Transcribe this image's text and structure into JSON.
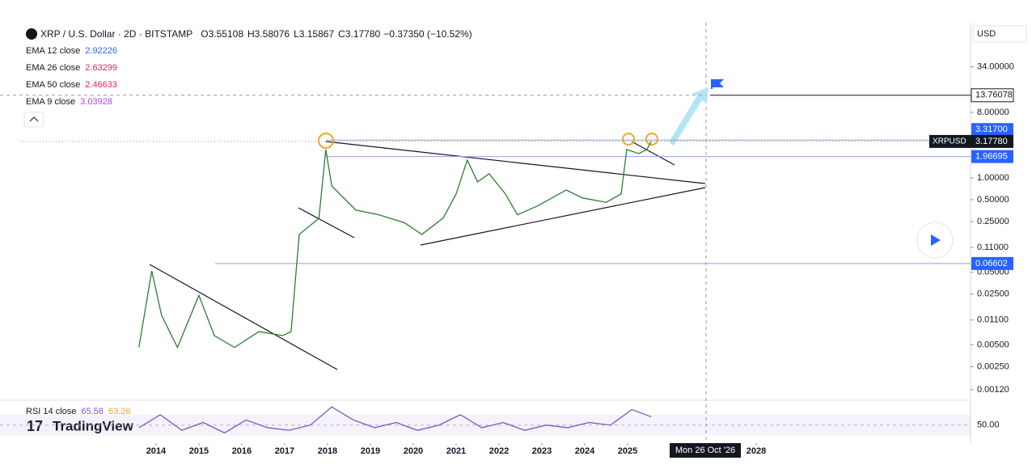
{
  "header": {
    "symbol": "XRP / U.S. Dollar · 2D · BITSTAMP",
    "ohlc": [
      {
        "label": "O",
        "value": "3.55108"
      },
      {
        "label": "H",
        "value": "3.58076"
      },
      {
        "label": "L",
        "value": "3.15867"
      },
      {
        "label": "C",
        "value": "3.17780"
      }
    ],
    "change": "−0.37350 (−10.52%)"
  },
  "indicators": [
    {
      "name": "EMA 12 close",
      "value": "2.92226",
      "color": "#2962ff"
    },
    {
      "name": "EMA 26 close",
      "value": "2.63299",
      "color": "#e91e63"
    },
    {
      "name": "EMA 50 close",
      "value": "2.46633",
      "color": "#e91e63"
    },
    {
      "name": "EMA 9 close",
      "value": "3.03928",
      "color": "#b93cf6"
    }
  ],
  "currency": "USD",
  "brand": "TradingView",
  "crosshair_label": "Mon 26 Oct '26",
  "chart_data": [
    {
      "type": "line",
      "log_scale": true,
      "color": "#2e7d32",
      "x": [
        2013.6,
        2013.9,
        2014.13,
        2014.5,
        2015.0,
        2015.36,
        2015.83,
        2016.4,
        2016.96,
        2017.15,
        2017.34,
        2017.8,
        2017.96,
        2018.1,
        2018.66,
        2019.2,
        2019.8,
        2020.2,
        2020.7,
        2021.0,
        2021.26,
        2021.5,
        2021.77,
        2022.15,
        2022.43,
        2022.9,
        2023.57,
        2023.94,
        2024.5,
        2024.85,
        2024.98,
        2025.26,
        2025.45,
        2025.55
      ],
      "values": [
        0.0046,
        0.052,
        0.0127,
        0.0046,
        0.024,
        0.0067,
        0.0046,
        0.0076,
        0.0067,
        0.0076,
        0.166,
        0.277,
        2.46,
        0.77,
        0.36,
        0.31,
        0.24,
        0.166,
        0.28,
        0.6,
        1.76,
        0.88,
        1.14,
        0.6,
        0.31,
        0.41,
        0.68,
        0.53,
        0.46,
        0.6,
        2.46,
        2.16,
        2.46,
        3.1778
      ],
      "xlim": [
        2010.36,
        2033.0
      ],
      "xticks": [
        2014,
        2015,
        2016,
        2017,
        2018,
        2019,
        2020,
        2021,
        2022,
        2023,
        2024,
        2025,
        2028
      ],
      "ylim": [
        0.00086,
        131
      ],
      "yticks": [
        {
          "value": 34,
          "label": "34.00000"
        },
        {
          "value": 8,
          "label": "8.00000"
        },
        {
          "value": 1,
          "label": "1.00000"
        },
        {
          "value": 0.5,
          "label": "0.50000"
        },
        {
          "value": 0.25,
          "label": "0.25000"
        },
        {
          "value": 0.11,
          "label": "0.11000"
        },
        {
          "value": 0.05,
          "label": "0.05000"
        },
        {
          "value": 0.025,
          "label": "0.02500"
        },
        {
          "value": 0.011,
          "label": "0.01100"
        },
        {
          "value": 0.005,
          "label": "0.00500"
        },
        {
          "value": 0.0025,
          "label": "0.00250"
        },
        {
          "value": 0.0012,
          "label": "0.00120"
        }
      ],
      "levels": [
        {
          "value": 13.76078,
          "label": "13.76078"
        },
        {
          "value": 3.317,
          "label": "3.31700"
        },
        {
          "value": 1.96695,
          "label": "1.96695"
        },
        {
          "value": 0.06602,
          "label": "0.06602"
        }
      ],
      "last_price": {
        "name": "XRPUSD",
        "value": 3.1778,
        "label": "3.17780"
      }
    },
    {
      "type": "line",
      "name": "RSI 14 close",
      "legend_values": [
        "65.58",
        "63.26"
      ],
      "color": "#7e57c2",
      "x": [
        2013.6,
        2014.1,
        2014.6,
        2015.1,
        2015.6,
        2016.1,
        2016.6,
        2017.1,
        2017.6,
        2018.1,
        2018.6,
        2019.1,
        2019.6,
        2020.1,
        2020.6,
        2021.1,
        2021.6,
        2022.1,
        2022.6,
        2023.1,
        2023.6,
        2024.1,
        2024.6,
        2025.1,
        2025.55
      ],
      "values": [
        45,
        70,
        40,
        55,
        35,
        60,
        45,
        40,
        50,
        85,
        60,
        45,
        55,
        40,
        50,
        70,
        45,
        55,
        40,
        50,
        45,
        55,
        50,
        80,
        66
      ],
      "xlim": [
        2010.36,
        2033.0
      ],
      "ylim": [
        20,
        90
      ],
      "yticks": [
        {
          "value": 50,
          "label": "50.00"
        }
      ]
    }
  ]
}
